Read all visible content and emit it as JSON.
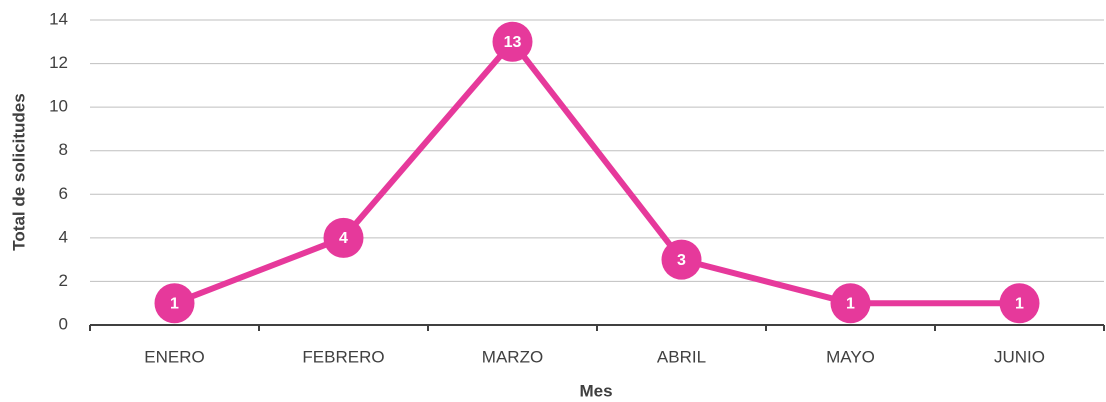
{
  "chart_data": {
    "type": "line",
    "x_label": "Mes",
    "y_label": "Total de solicitudes",
    "categories": [
      "ENERO",
      "FEBRERO",
      "MARZO",
      "ABRIL",
      "MAYO",
      "JUNIO"
    ],
    "series": [
      {
        "name": "Total de solicitudes",
        "color": "#e6399b",
        "values": [
          1,
          4,
          13,
          3,
          1,
          1
        ]
      }
    ],
    "ylim": [
      0,
      14
    ],
    "yticks": [
      0,
      2,
      4,
      6,
      8,
      10,
      12,
      14
    ],
    "grid": true,
    "data_labels": true
  }
}
